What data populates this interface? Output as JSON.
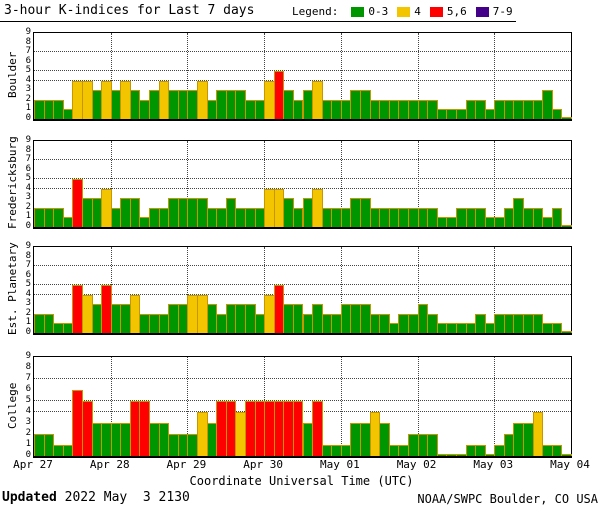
{
  "title": "3-hour K-indices for Last 7 days",
  "legend": {
    "label": "Legend:",
    "items": [
      {
        "label": "0-3",
        "color": "#009600"
      },
      {
        "label": "4",
        "color": "#f2c500"
      },
      {
        "label": "5,6",
        "color": "#ff0000"
      },
      {
        "label": "7-9",
        "color": "#440088"
      }
    ]
  },
  "footer": {
    "updated_label": "Updated",
    "updated_value": " 2022 May  3 2130",
    "credit": "NOAA/SWPC Boulder, CO USA"
  },
  "colors": {
    "green": "#009600",
    "yellow": "#f2c500",
    "red": "#ff0000",
    "purple": "#440088",
    "bar_outline": "#c89600"
  },
  "chart_data": {
    "type": "bar",
    "title": "3-hour K-indices for Last 7 days",
    "xlabel": "Coordinate Universal Time (UTC)",
    "x_categories_days": [
      "Apr 27",
      "Apr 28",
      "Apr 29",
      "Apr 30",
      "May 01",
      "May 02",
      "May 03",
      "May 04"
    ],
    "bars_per_day": 8,
    "ylim": [
      0,
      9
    ],
    "y_ticks": [
      0,
      1,
      2,
      3,
      4,
      5,
      6,
      7,
      8,
      9
    ],
    "dotted_gridlines_at": [
      4,
      5,
      7
    ],
    "grid": "dotted vertical lines at each day boundary",
    "legend_position": "top-right",
    "color_rule": {
      "0-3": "green",
      "4": "yellow",
      "5,6": "red",
      "7-9": "purple"
    },
    "series": [
      {
        "name": "Boulder",
        "values": [
          2,
          2,
          2,
          1,
          4,
          4,
          3,
          4,
          3,
          4,
          3,
          2,
          3,
          4,
          3,
          3,
          3,
          4,
          2,
          3,
          3,
          3,
          2,
          2,
          4,
          5,
          3,
          2,
          3,
          4,
          2,
          2,
          2,
          3,
          3,
          2,
          2,
          2,
          2,
          2,
          2,
          2,
          1,
          1,
          1,
          2,
          2,
          1,
          2,
          2,
          2,
          2,
          2,
          3,
          1,
          0
        ]
      },
      {
        "name": "Fredericksburg",
        "values": [
          2,
          2,
          2,
          1,
          5,
          3,
          3,
          4,
          2,
          3,
          3,
          1,
          2,
          2,
          3,
          3,
          3,
          3,
          2,
          2,
          3,
          2,
          2,
          2,
          4,
          4,
          3,
          2,
          3,
          4,
          2,
          2,
          2,
          3,
          3,
          2,
          2,
          2,
          2,
          2,
          2,
          2,
          1,
          1,
          2,
          2,
          2,
          1,
          1,
          2,
          3,
          2,
          2,
          1,
          2,
          0
        ]
      },
      {
        "name": "Est. Planetary",
        "values": [
          2,
          2,
          1,
          1,
          5,
          4,
          3,
          5,
          3,
          3,
          4,
          2,
          2,
          2,
          3,
          3,
          4,
          4,
          3,
          2,
          3,
          3,
          3,
          2,
          4,
          5,
          3,
          3,
          2,
          3,
          2,
          2,
          3,
          3,
          3,
          2,
          2,
          1,
          2,
          2,
          3,
          2,
          1,
          1,
          1,
          1,
          2,
          1,
          2,
          2,
          2,
          2,
          2,
          1,
          1,
          0
        ]
      },
      {
        "name": "College",
        "values": [
          2,
          2,
          1,
          1,
          6,
          5,
          3,
          3,
          3,
          3,
          5,
          5,
          3,
          3,
          2,
          2,
          2,
          4,
          3,
          5,
          5,
          4,
          5,
          5,
          5,
          5,
          5,
          5,
          3,
          5,
          1,
          1,
          1,
          3,
          3,
          4,
          3,
          1,
          1,
          2,
          2,
          2,
          0,
          0,
          0,
          1,
          1,
          0,
          1,
          2,
          3,
          3,
          4,
          1,
          1,
          0
        ]
      }
    ]
  }
}
